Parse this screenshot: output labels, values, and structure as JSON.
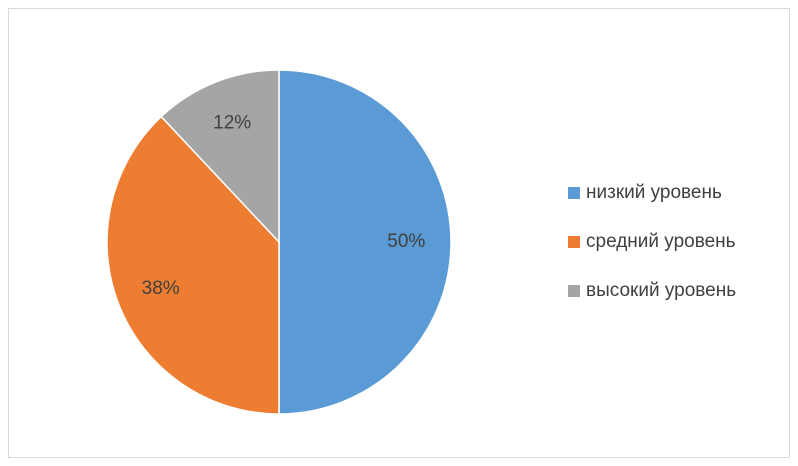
{
  "chart_data": {
    "type": "pie",
    "categories": [
      "низкий уровень",
      "средний уровень",
      "высокий уровень"
    ],
    "values": [
      50,
      38,
      12
    ],
    "value_labels": [
      "50%",
      "38%",
      "12%"
    ],
    "colors": [
      "#5b9bd5",
      "#ed7d31",
      "#a5a5a5"
    ],
    "legend": "right"
  }
}
